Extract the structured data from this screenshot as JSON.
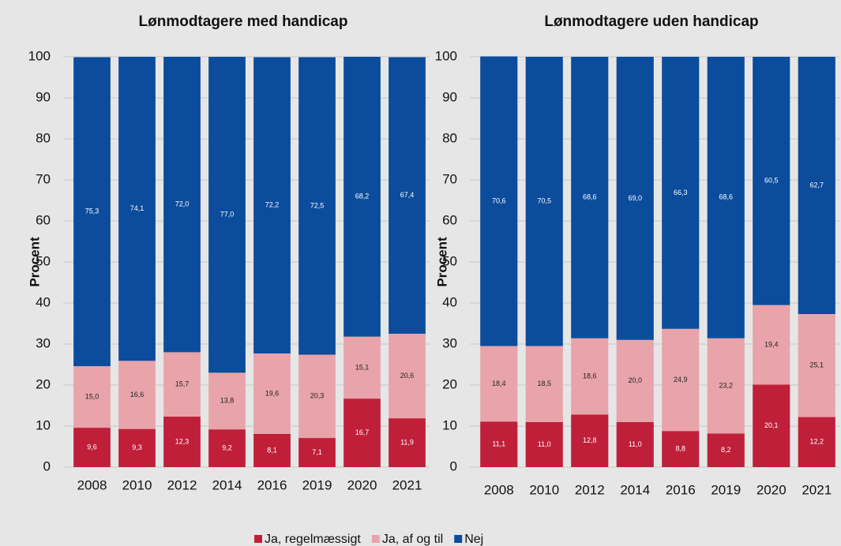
{
  "chart_data": [
    {
      "type": "stacked_bar",
      "title": "Lønmodtagere med handicap",
      "y_label": "Procent",
      "categories": [
        "2008",
        "2010",
        "2012",
        "2014",
        "2016",
        "2019",
        "2020",
        "2021"
      ],
      "ylim": [
        0,
        100
      ],
      "yticks": [
        0,
        10,
        20,
        30,
        40,
        50,
        60,
        70,
        80,
        90,
        100
      ],
      "grid": true,
      "series": [
        {
          "values": [
            9.6,
            9.3,
            12.3,
            9.2,
            8.1,
            7.1,
            16.7,
            11.9
          ],
          "value_labels": [
            "9,6",
            "9,3",
            "12,3",
            "9,2",
            "8,1",
            "7,1",
            "16,7",
            "11,9"
          ]
        },
        {
          "values": [
            15.0,
            16.6,
            15.7,
            13.8,
            19.6,
            20.3,
            15.1,
            20.6
          ],
          "value_labels": [
            "15,0",
            "16,6",
            "15,7",
            "13,8",
            "19,6",
            "20,3",
            "15,1",
            "20,6"
          ]
        },
        {
          "values": [
            75.3,
            74.1,
            72.0,
            77.0,
            72.2,
            72.5,
            68.2,
            67.4
          ],
          "value_labels": [
            "75,3",
            "74,1",
            "72,0",
            "77,0",
            "72,2",
            "72,5",
            "68,2",
            "67,4"
          ]
        }
      ]
    },
    {
      "type": "stacked_bar",
      "title": "Lønmodtagere uden handicap",
      "y_label": "Procent",
      "categories": [
        "2008",
        "2010",
        "2012",
        "2014",
        "2016",
        "2019",
        "2020",
        "2021"
      ],
      "ylim": [
        0,
        100
      ],
      "yticks": [
        0,
        10,
        20,
        30,
        40,
        50,
        60,
        70,
        80,
        90,
        100
      ],
      "grid": true,
      "series": [
        {
          "values": [
            11.1,
            11.0,
            12.8,
            11.0,
            8.8,
            8.2,
            20.1,
            12.2
          ],
          "value_labels": [
            "11,1",
            "11,0",
            "12,8",
            "11,0",
            "8,8",
            "8,2",
            "20,1",
            "12,2"
          ]
        },
        {
          "values": [
            18.4,
            18.5,
            18.6,
            20.0,
            24.9,
            23.2,
            19.4,
            25.1
          ],
          "value_labels": [
            "18,4",
            "18,5",
            "18,6",
            "20,0",
            "24,9",
            "23,2",
            "19,4",
            "25,1"
          ]
        },
        {
          "values": [
            70.6,
            70.5,
            68.6,
            69.0,
            66.3,
            68.6,
            60.5,
            62.7
          ],
          "value_labels": [
            "70,6",
            "70,5",
            "68,6",
            "69,0",
            "66,3",
            "68,6",
            "60,5",
            "62,7"
          ]
        }
      ]
    }
  ],
  "legend": [
    {
      "name": "Ja, regelmæssigt",
      "color": "#c01f3a"
    },
    {
      "name": "Ja, af og til",
      "color": "#e8a4aa"
    },
    {
      "name": "Nej",
      "color": "#0b4c9c"
    }
  ]
}
